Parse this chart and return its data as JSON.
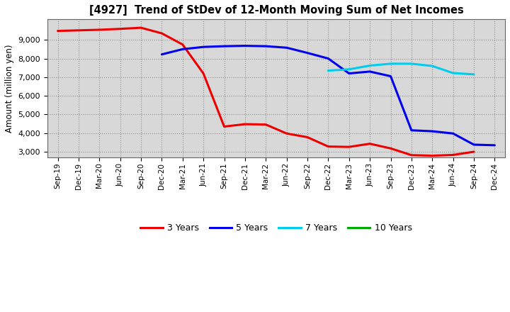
{
  "title": "[4927]  Trend of StDev of 12-Month Moving Sum of Net Incomes",
  "ylabel": "Amount (million yen)",
  "background_color": "#ffffff",
  "plot_bg_color": "#d8d8d8",
  "grid_color": "#888888",
  "x_labels": [
    "Sep-19",
    "Dec-19",
    "Mar-20",
    "Jun-20",
    "Sep-20",
    "Dec-20",
    "Mar-21",
    "Jun-21",
    "Sep-21",
    "Dec-21",
    "Mar-22",
    "Jun-22",
    "Sep-22",
    "Dec-22",
    "Mar-23",
    "Jun-23",
    "Sep-23",
    "Dec-23",
    "Mar-24",
    "Jun-24",
    "Sep-24",
    "Dec-24"
  ],
  "series": {
    "3 Years": {
      "color": "#ee0000",
      "data_x": [
        0,
        1,
        2,
        3,
        4,
        5,
        6,
        7,
        8,
        9,
        10,
        11,
        12,
        13,
        14,
        15,
        16,
        17,
        18,
        19,
        20
      ],
      "data_y": [
        9480,
        9510,
        9540,
        9590,
        9650,
        9350,
        8750,
        7200,
        4350,
        4480,
        4460,
        3980,
        3780,
        3280,
        3260,
        3430,
        3180,
        2820,
        2790,
        2830,
        3000
      ]
    },
    "5 Years": {
      "color": "#0000ee",
      "data_x": [
        5,
        6,
        7,
        8,
        9,
        10,
        11,
        12,
        13,
        14,
        15,
        16,
        17,
        18,
        19,
        20,
        21
      ],
      "data_y": [
        8220,
        8500,
        8620,
        8660,
        8680,
        8660,
        8580,
        8300,
        8000,
        7200,
        7300,
        7050,
        4150,
        4100,
        3980,
        3380,
        3350
      ]
    },
    "7 Years": {
      "color": "#00ccee",
      "data_x": [
        13,
        14,
        15,
        16,
        17,
        18,
        19,
        20
      ],
      "data_y": [
        7350,
        7420,
        7620,
        7720,
        7720,
        7600,
        7220,
        7150
      ]
    },
    "10 Years": {
      "color": "#00aa00",
      "data_x": [],
      "data_y": []
    }
  },
  "ylim": [
    2700,
    10100
  ],
  "yticks": [
    3000,
    4000,
    5000,
    6000,
    7000,
    8000,
    9000
  ],
  "legend_colors": [
    "#ee0000",
    "#0000ee",
    "#00ccee",
    "#00aa00"
  ],
  "legend_labels": [
    "3 Years",
    "5 Years",
    "7 Years",
    "10 Years"
  ]
}
